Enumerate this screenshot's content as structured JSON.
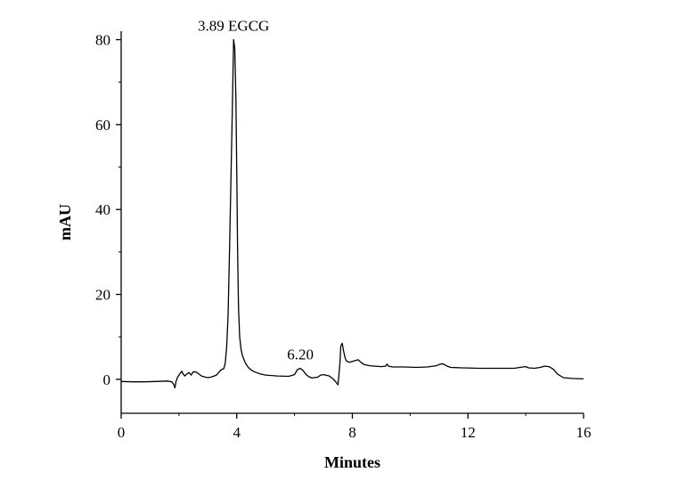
{
  "chart_data": {
    "type": "line",
    "title": "",
    "xlabel": "Minutes",
    "ylabel": "mAU",
    "xlim": [
      0,
      16
    ],
    "ylim": [
      -8,
      82
    ],
    "xticks": [
      0,
      4,
      8,
      12,
      16
    ],
    "xtick_labels": [
      "0",
      "4",
      "8",
      "12",
      "16"
    ],
    "yticks": [
      0,
      20,
      40,
      60,
      80
    ],
    "ytick_labels": [
      "0",
      "20",
      "40",
      "60",
      "80"
    ],
    "grid": false,
    "legend": "none",
    "line_color": "#000000",
    "series": [
      {
        "x": [
          0.0,
          0.4,
          0.8,
          1.2,
          1.6,
          1.75,
          1.82,
          1.86,
          1.9,
          1.95,
          2.0,
          2.05,
          2.1,
          2.15,
          2.2,
          2.28,
          2.35,
          2.42,
          2.5,
          2.6,
          2.7,
          2.8,
          3.0,
          3.15,
          3.3,
          3.45,
          3.55,
          3.6,
          3.65,
          3.7,
          3.75,
          3.8,
          3.85,
          3.89,
          3.93,
          3.97,
          4.0,
          4.03,
          4.06,
          4.1,
          4.15,
          4.2,
          4.3,
          4.4,
          4.5,
          4.6,
          4.8,
          5.0,
          5.4,
          5.8,
          6.0,
          6.1,
          6.2,
          6.3,
          6.4,
          6.5,
          6.6,
          6.8,
          6.9,
          7.0,
          7.2,
          7.35,
          7.45,
          7.5,
          7.53,
          7.57,
          7.6,
          7.65,
          7.7,
          7.75,
          7.8,
          7.9,
          8.0,
          8.1,
          8.2,
          8.3,
          8.4,
          8.6,
          9.0,
          9.15,
          9.2,
          9.25,
          9.4,
          9.8,
          10.2,
          10.6,
          10.9,
          11.05,
          11.15,
          11.25,
          11.4,
          11.8,
          12.4,
          13.0,
          13.6,
          13.9,
          14.0,
          14.1,
          14.3,
          14.5,
          14.65,
          14.8,
          14.95,
          15.1,
          15.3,
          15.6,
          16.0
        ],
        "y": [
          -0.5,
          -0.6,
          -0.6,
          -0.5,
          -0.4,
          -0.6,
          -1.2,
          -2.0,
          -0.5,
          0.5,
          1.0,
          1.5,
          1.9,
          1.2,
          0.8,
          1.3,
          1.6,
          1.0,
          1.8,
          1.7,
          1.2,
          0.7,
          0.4,
          0.6,
          1.0,
          2.2,
          2.5,
          3.8,
          7.5,
          15.0,
          30.0,
          48.0,
          65.0,
          80.0,
          78.0,
          66.0,
          48.0,
          30.0,
          17.0,
          10.0,
          7.0,
          5.5,
          3.8,
          2.8,
          2.2,
          1.8,
          1.3,
          1.0,
          0.8,
          0.7,
          1.1,
          2.3,
          2.6,
          2.0,
          1.1,
          0.6,
          0.3,
          0.5,
          1.0,
          1.1,
          0.8,
          0.0,
          -0.8,
          -1.3,
          0.8,
          4.0,
          7.8,
          8.5,
          6.5,
          5.0,
          4.3,
          4.0,
          4.2,
          4.4,
          4.6,
          4.0,
          3.5,
          3.2,
          3.0,
          3.1,
          3.6,
          3.1,
          2.9,
          2.9,
          2.8,
          2.9,
          3.2,
          3.6,
          3.6,
          3.2,
          2.8,
          2.7,
          2.6,
          2.6,
          2.6,
          2.9,
          3.0,
          2.7,
          2.6,
          2.8,
          3.1,
          3.0,
          2.4,
          1.2,
          0.4,
          0.2,
          0.1
        ]
      }
    ],
    "annotations": [
      {
        "text": "3.89 EGCG",
        "x": 3.89,
        "y": 80.0
      },
      {
        "text": "6.20",
        "x": 6.2,
        "y": 2.6
      }
    ]
  }
}
